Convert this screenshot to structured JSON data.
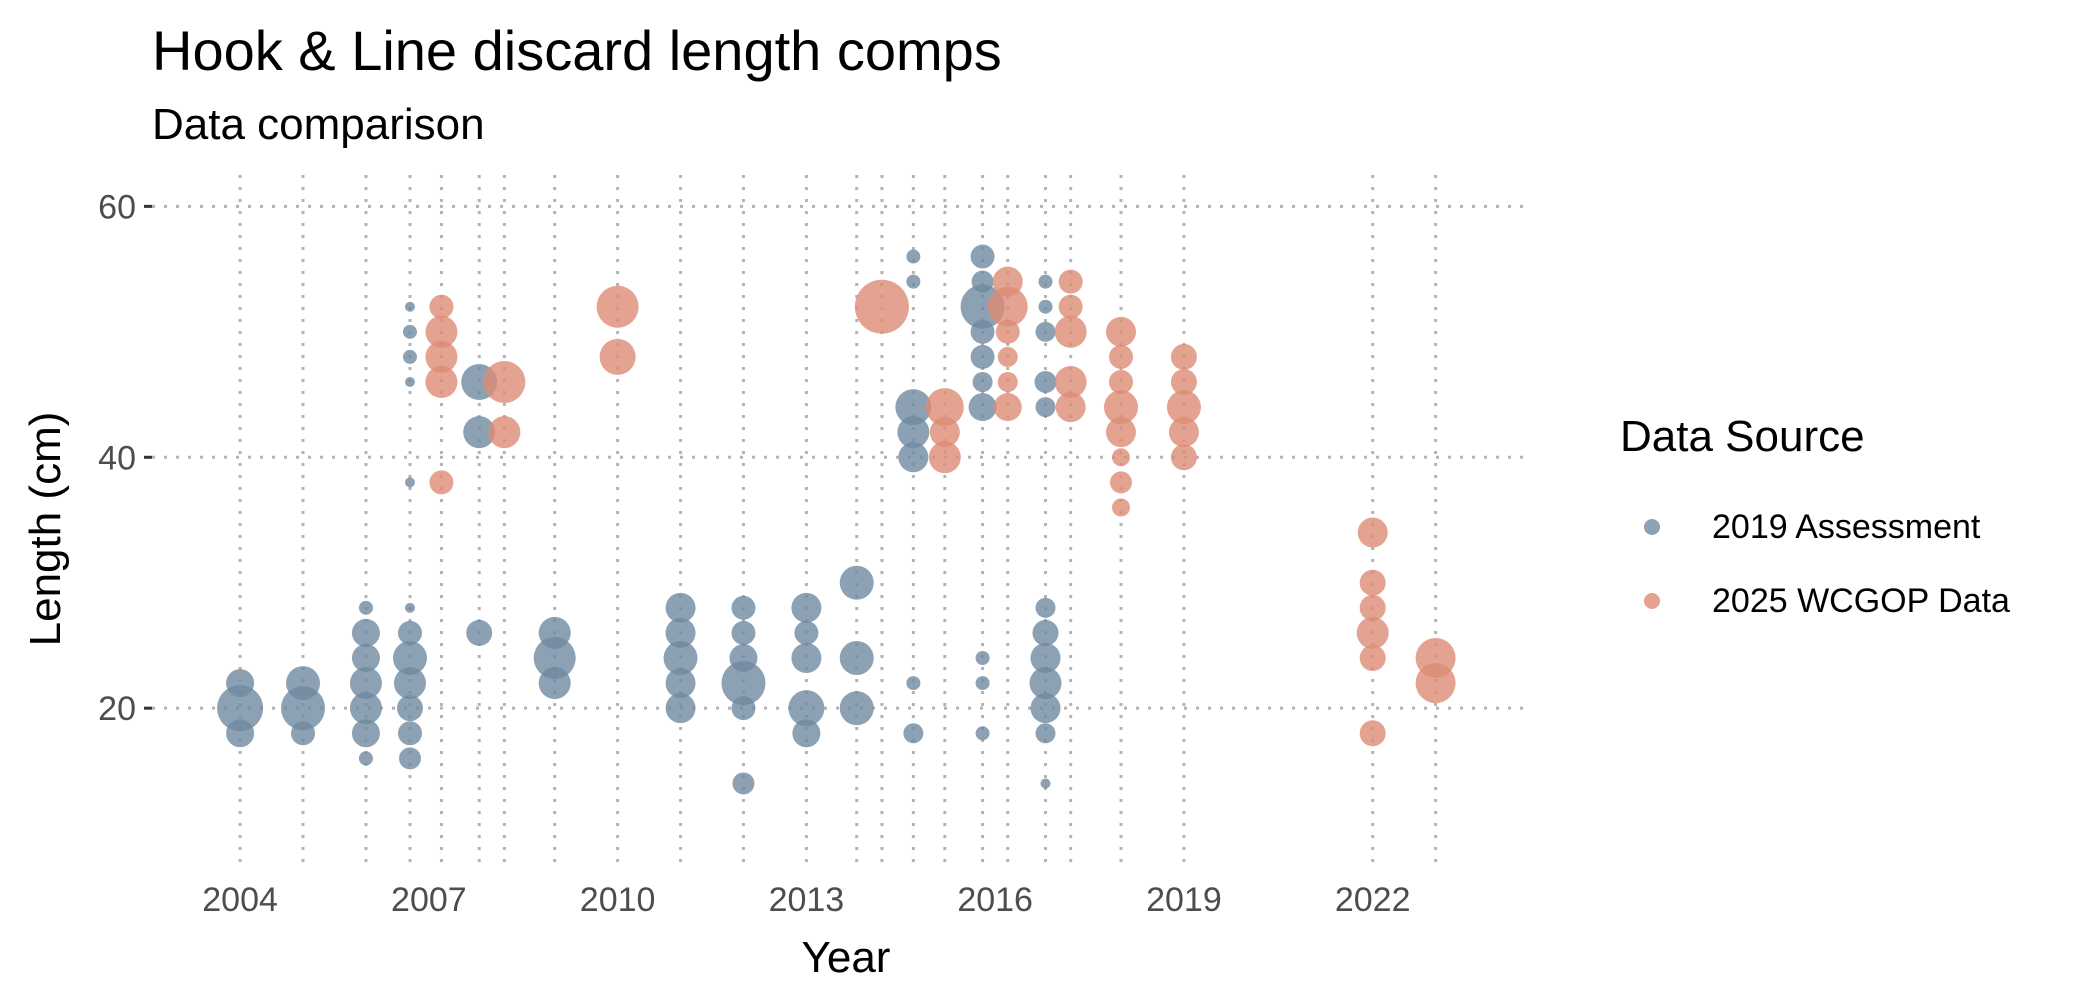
{
  "chart_data": {
    "type": "scatter",
    "title": "Hook & Line discard length comps",
    "subtitle": "Data comparison",
    "xlabel": "Year",
    "ylabel": "Length (cm)",
    "xlim": [
      2002.6,
      2024.5
    ],
    "ylim": [
      7.5,
      62.5
    ],
    "x_ticks": [
      2004,
      2007,
      2010,
      2013,
      2016,
      2019,
      2022
    ],
    "y_ticks": [
      20,
      40,
      60
    ],
    "grid": "dotted",
    "legend": {
      "title": "Data Source",
      "position": "right"
    },
    "series": [
      {
        "name": "2019 Assessment",
        "color": "#6f8aa0",
        "points": [
          {
            "x": 2004,
            "y": 22,
            "r": 14
          },
          {
            "x": 2004,
            "y": 20,
            "r": 23
          },
          {
            "x": 2004,
            "y": 18,
            "r": 14
          },
          {
            "x": 2005,
            "y": 22,
            "r": 17
          },
          {
            "x": 2005,
            "y": 20,
            "r": 22
          },
          {
            "x": 2005,
            "y": 18,
            "r": 12
          },
          {
            "x": 2006,
            "y": 28,
            "r": 7
          },
          {
            "x": 2006,
            "y": 26,
            "r": 14
          },
          {
            "x": 2006,
            "y": 24,
            "r": 14
          },
          {
            "x": 2006,
            "y": 22,
            "r": 16
          },
          {
            "x": 2006,
            "y": 20,
            "r": 16
          },
          {
            "x": 2006,
            "y": 18,
            "r": 14
          },
          {
            "x": 2006,
            "y": 16,
            "r": 7
          },
          {
            "x": 2006.7,
            "y": 52,
            "r": 5
          },
          {
            "x": 2006.7,
            "y": 50,
            "r": 7
          },
          {
            "x": 2006.7,
            "y": 48,
            "r": 7
          },
          {
            "x": 2006.7,
            "y": 46,
            "r": 5
          },
          {
            "x": 2006.7,
            "y": 38,
            "r": 5
          },
          {
            "x": 2006.7,
            "y": 28,
            "r": 5
          },
          {
            "x": 2006.7,
            "y": 26,
            "r": 12
          },
          {
            "x": 2006.7,
            "y": 24,
            "r": 17
          },
          {
            "x": 2006.7,
            "y": 22,
            "r": 16
          },
          {
            "x": 2006.7,
            "y": 20,
            "r": 13
          },
          {
            "x": 2006.7,
            "y": 18,
            "r": 12
          },
          {
            "x": 2006.7,
            "y": 16,
            "r": 11
          },
          {
            "x": 2007.8,
            "y": 46,
            "r": 18
          },
          {
            "x": 2007.8,
            "y": 42,
            "r": 16
          },
          {
            "x": 2007.8,
            "y": 26,
            "r": 13
          },
          {
            "x": 2009,
            "y": 26,
            "r": 16
          },
          {
            "x": 2009,
            "y": 24,
            "r": 21
          },
          {
            "x": 2009,
            "y": 22,
            "r": 16
          },
          {
            "x": 2011,
            "y": 28,
            "r": 15
          },
          {
            "x": 2011,
            "y": 26,
            "r": 15
          },
          {
            "x": 2011,
            "y": 24,
            "r": 17
          },
          {
            "x": 2011,
            "y": 22,
            "r": 15
          },
          {
            "x": 2011,
            "y": 20,
            "r": 15
          },
          {
            "x": 2012,
            "y": 28,
            "r": 12
          },
          {
            "x": 2012,
            "y": 26,
            "r": 12
          },
          {
            "x": 2012,
            "y": 24,
            "r": 14
          },
          {
            "x": 2012,
            "y": 22,
            "r": 22
          },
          {
            "x": 2012,
            "y": 20,
            "r": 12
          },
          {
            "x": 2012,
            "y": 14,
            "r": 11
          },
          {
            "x": 2013,
            "y": 28,
            "r": 15
          },
          {
            "x": 2013,
            "y": 26,
            "r": 12
          },
          {
            "x": 2013,
            "y": 24,
            "r": 15
          },
          {
            "x": 2013,
            "y": 20,
            "r": 18
          },
          {
            "x": 2013,
            "y": 18,
            "r": 14
          },
          {
            "x": 2013.8,
            "y": 30,
            "r": 17
          },
          {
            "x": 2013.8,
            "y": 24,
            "r": 17
          },
          {
            "x": 2013.8,
            "y": 20,
            "r": 17
          },
          {
            "x": 2014.7,
            "y": 56,
            "r": 7
          },
          {
            "x": 2014.7,
            "y": 54,
            "r": 7
          },
          {
            "x": 2014.7,
            "y": 44,
            "r": 18
          },
          {
            "x": 2014.7,
            "y": 42,
            "r": 16
          },
          {
            "x": 2014.7,
            "y": 40,
            "r": 15
          },
          {
            "x": 2014.7,
            "y": 22,
            "r": 7
          },
          {
            "x": 2014.7,
            "y": 18,
            "r": 10
          },
          {
            "x": 2015.8,
            "y": 56,
            "r": 12
          },
          {
            "x": 2015.8,
            "y": 54,
            "r": 11
          },
          {
            "x": 2015.8,
            "y": 52,
            "r": 22
          },
          {
            "x": 2015.8,
            "y": 50,
            "r": 12
          },
          {
            "x": 2015.8,
            "y": 48,
            "r": 12
          },
          {
            "x": 2015.8,
            "y": 46,
            "r": 10
          },
          {
            "x": 2015.8,
            "y": 44,
            "r": 14
          },
          {
            "x": 2015.8,
            "y": 24,
            "r": 7
          },
          {
            "x": 2015.8,
            "y": 22,
            "r": 7
          },
          {
            "x": 2015.8,
            "y": 18,
            "r": 7
          },
          {
            "x": 2016.8,
            "y": 54,
            "r": 7
          },
          {
            "x": 2016.8,
            "y": 52,
            "r": 7
          },
          {
            "x": 2016.8,
            "y": 50,
            "r": 10
          },
          {
            "x": 2016.8,
            "y": 46,
            "r": 11
          },
          {
            "x": 2016.8,
            "y": 44,
            "r": 10
          },
          {
            "x": 2016.8,
            "y": 28,
            "r": 10
          },
          {
            "x": 2016.8,
            "y": 26,
            "r": 13
          },
          {
            "x": 2016.8,
            "y": 24,
            "r": 15
          },
          {
            "x": 2016.8,
            "y": 22,
            "r": 16
          },
          {
            "x": 2016.8,
            "y": 20,
            "r": 15
          },
          {
            "x": 2016.8,
            "y": 18,
            "r": 10
          },
          {
            "x": 2016.8,
            "y": 14,
            "r": 5
          }
        ]
      },
      {
        "name": "2025 WCGOP Data",
        "color": "#dc8c74",
        "points": [
          {
            "x": 2007.2,
            "y": 52,
            "r": 12
          },
          {
            "x": 2007.2,
            "y": 50,
            "r": 16
          },
          {
            "x": 2007.2,
            "y": 48,
            "r": 16
          },
          {
            "x": 2007.2,
            "y": 46,
            "r": 16
          },
          {
            "x": 2007.2,
            "y": 38,
            "r": 12
          },
          {
            "x": 2008.2,
            "y": 46,
            "r": 21
          },
          {
            "x": 2008.2,
            "y": 42,
            "r": 16
          },
          {
            "x": 2010,
            "y": 52,
            "r": 21
          },
          {
            "x": 2010,
            "y": 48,
            "r": 18
          },
          {
            "x": 2014.2,
            "y": 52,
            "r": 27
          },
          {
            "x": 2015.2,
            "y": 44,
            "r": 19
          },
          {
            "x": 2015.2,
            "y": 42,
            "r": 15
          },
          {
            "x": 2015.2,
            "y": 40,
            "r": 16
          },
          {
            "x": 2016.2,
            "y": 54,
            "r": 15
          },
          {
            "x": 2016.2,
            "y": 52,
            "r": 20
          },
          {
            "x": 2016.2,
            "y": 50,
            "r": 12
          },
          {
            "x": 2016.2,
            "y": 48,
            "r": 10
          },
          {
            "x": 2016.2,
            "y": 46,
            "r": 10
          },
          {
            "x": 2016.2,
            "y": 44,
            "r": 14
          },
          {
            "x": 2017.2,
            "y": 54,
            "r": 12
          },
          {
            "x": 2017.2,
            "y": 52,
            "r": 12
          },
          {
            "x": 2017.2,
            "y": 50,
            "r": 16
          },
          {
            "x": 2017.2,
            "y": 46,
            "r": 16
          },
          {
            "x": 2017.2,
            "y": 44,
            "r": 15
          },
          {
            "x": 2018,
            "y": 50,
            "r": 15
          },
          {
            "x": 2018,
            "y": 48,
            "r": 12
          },
          {
            "x": 2018,
            "y": 46,
            "r": 12
          },
          {
            "x": 2018,
            "y": 44,
            "r": 17
          },
          {
            "x": 2018,
            "y": 42,
            "r": 15
          },
          {
            "x": 2018,
            "y": 40,
            "r": 9
          },
          {
            "x": 2018,
            "y": 38,
            "r": 11
          },
          {
            "x": 2018,
            "y": 36,
            "r": 9
          },
          {
            "x": 2019,
            "y": 48,
            "r": 13
          },
          {
            "x": 2019,
            "y": 46,
            "r": 13
          },
          {
            "x": 2019,
            "y": 44,
            "r": 17
          },
          {
            "x": 2019,
            "y": 42,
            "r": 15
          },
          {
            "x": 2019,
            "y": 40,
            "r": 13
          },
          {
            "x": 2022,
            "y": 34,
            "r": 15
          },
          {
            "x": 2022,
            "y": 30,
            "r": 13
          },
          {
            "x": 2022,
            "y": 28,
            "r": 13
          },
          {
            "x": 2022,
            "y": 26,
            "r": 16
          },
          {
            "x": 2022,
            "y": 24,
            "r": 13
          },
          {
            "x": 2022,
            "y": 18,
            "r": 13
          },
          {
            "x": 2023,
            "y": 24,
            "r": 20
          },
          {
            "x": 2023,
            "y": 22,
            "r": 20
          }
        ]
      }
    ]
  }
}
